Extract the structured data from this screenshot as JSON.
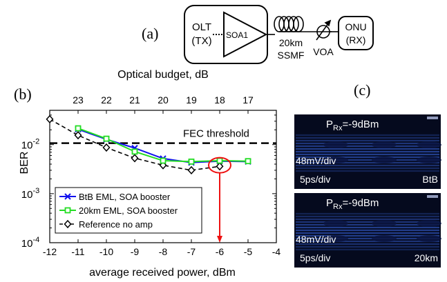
{
  "panel_labels": {
    "a": "(a)",
    "b": "(b)",
    "c": "(c)"
  },
  "diagram": {
    "olt_line1": "OLT",
    "olt_line2": "(TX)",
    "soa": "SOA1",
    "fiber_line1": "20km",
    "fiber_line2": "SSMF",
    "voa": "VOA",
    "onu_line1": "ONU",
    "onu_line2": "(RX)"
  },
  "chart_data": {
    "type": "line",
    "xlabel": "average received power, dBm",
    "ylabel": "BER",
    "top_axis_label": "Optical budget, dB",
    "xlim": [
      -12,
      -4
    ],
    "ylim": [
      0.0001,
      0.05
    ],
    "yscale": "log",
    "x_ticks": [
      -12,
      -11,
      -10,
      -9,
      -8,
      -7,
      -6,
      -5,
      -4
    ],
    "x_tick_labels": [
      "-12",
      "-11",
      "-10",
      "-9",
      "-8",
      "-7",
      "-6",
      "-5",
      "-4"
    ],
    "top_ticks": [
      -11,
      -10,
      -9,
      -8,
      -7,
      -6,
      -5
    ],
    "top_tick_labels": [
      "23",
      "22",
      "21",
      "20",
      "19",
      "18",
      "17"
    ],
    "y_tick_labels": [
      {
        "base": "10",
        "exp": "-4",
        "value": 0.0001
      },
      {
        "base": "10",
        "exp": "-3",
        "value": 0.001
      },
      {
        "base": "10",
        "exp": "-2",
        "value": 0.01
      }
    ],
    "fec_threshold": {
      "value": 0.0107,
      "label": "FEC threshold"
    },
    "series": [
      {
        "name": "BtB EML, SOA booster",
        "color": "#1010ee",
        "marker": "x",
        "x": [
          -11,
          -10,
          -9,
          -8,
          -7,
          -6,
          -5
        ],
        "y": [
          0.0205,
          0.0128,
          0.0085,
          0.0052,
          0.0043,
          0.0046,
          0.0045
        ]
      },
      {
        "name": "20km EML, SOA booster",
        "color": "#22dd22",
        "marker": "square",
        "x": [
          -11,
          -10,
          -9,
          -8,
          -7,
          -6,
          -5
        ],
        "y": [
          0.0215,
          0.0132,
          0.0072,
          0.0047,
          0.0045,
          0.0047,
          0.0046
        ]
      },
      {
        "name": "Reference no amp",
        "color": "#000000",
        "marker": "diamond",
        "dashed": true,
        "x": [
          -12,
          -11,
          -10,
          -9,
          -8,
          -7,
          -6
        ],
        "y": [
          0.033,
          0.0155,
          0.0087,
          0.0053,
          0.0038,
          0.003,
          0.0036
        ]
      }
    ],
    "legend_position": "bottom-left",
    "annotation": {
      "x": -6,
      "y": 0.0038,
      "color": "#ee1111"
    }
  },
  "eyes": [
    {
      "p_main": "P",
      "p_sub": "Rx",
      "p_val": "=-9dBm",
      "scale_v": "48mV/div",
      "scale_t": "5ps/div",
      "tag": "BtB"
    },
    {
      "p_main": "P",
      "p_sub": "Rx",
      "p_val": "=-9dBm",
      "scale_v": "48mV/div",
      "scale_t": "5ps/div",
      "tag": "20km"
    }
  ]
}
